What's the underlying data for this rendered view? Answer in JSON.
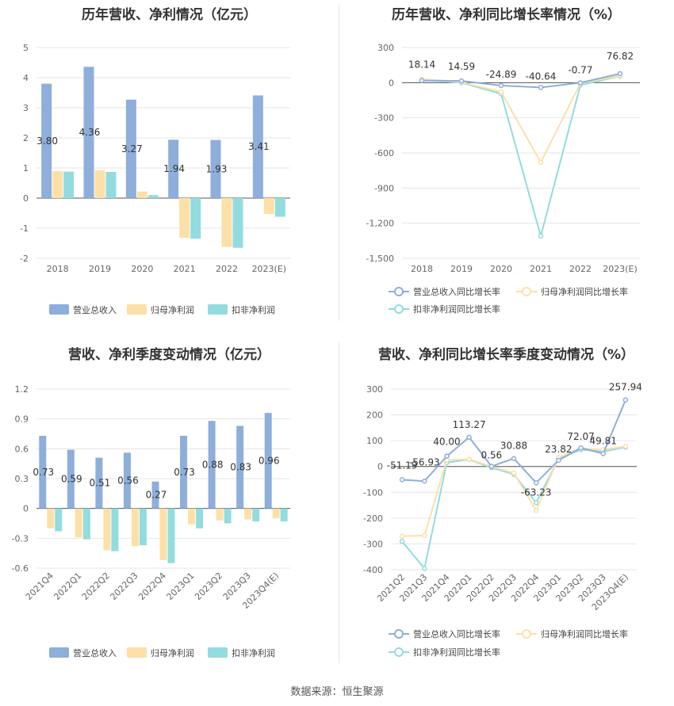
{
  "colors": {
    "revenue": "#8eaedb",
    "net_profit": "#fde0a8",
    "deducted_profit": "#92dcdf",
    "axis": "#666666",
    "grid": "#e6e6e6"
  },
  "source_text": "数据来源：恒生聚源",
  "chart_data": [
    {
      "type": "bar",
      "title": "历年营收、净利情况（亿元）",
      "categories": [
        "2018",
        "2019",
        "2020",
        "2021",
        "2022",
        "2023(E)"
      ],
      "ylim": [
        -2,
        5
      ],
      "yticks": [
        -2,
        -1,
        0,
        1,
        2,
        3,
        4,
        5
      ],
      "ytick_labels": [
        "-2",
        "-1",
        "0",
        "1",
        "2",
        "3",
        "4",
        "5"
      ],
      "series": [
        {
          "name": "营业总收入",
          "values": [
            3.8,
            4.36,
            3.27,
            1.94,
            1.93,
            3.41
          ],
          "labels": [
            "3.80",
            "4.36",
            "3.27",
            "1.94",
            "1.93",
            "3.41"
          ]
        },
        {
          "name": "归母净利润",
          "values": [
            0.9,
            0.92,
            0.22,
            -1.32,
            -1.62,
            -0.53
          ]
        },
        {
          "name": "扣非净利润",
          "values": [
            0.88,
            0.87,
            0.1,
            -1.35,
            -1.65,
            -0.62
          ]
        }
      ],
      "legend": "bottom"
    },
    {
      "type": "line",
      "title": "历年营收、净利同比增长率情况（%）",
      "categories": [
        "2018",
        "2019",
        "2020",
        "2021",
        "2022",
        "2023(E)"
      ],
      "ylim": [
        -1500,
        300
      ],
      "yticks": [
        -1500,
        -1200,
        -900,
        -600,
        -300,
        0,
        300
      ],
      "ytick_labels": [
        "-1,500",
        "-1,200",
        "-900",
        "-600",
        "-300",
        "0",
        "300"
      ],
      "series": [
        {
          "name": "营业总收入同比增长率",
          "values": [
            18.14,
            14.59,
            -24.89,
            -40.64,
            -0.77,
            76.82
          ],
          "labels": [
            "18.14",
            "14.59",
            "-24.89",
            "-40.64",
            "-0.77",
            "76.82"
          ]
        },
        {
          "name": "归母净利润同比增长率",
          "values": [
            30,
            5,
            -80,
            -680,
            -5,
            60
          ]
        },
        {
          "name": "扣非净利润同比增长率",
          "values": [
            25,
            0,
            -95,
            -1310,
            -20,
            55
          ]
        }
      ],
      "legend": "bottom"
    },
    {
      "type": "bar",
      "title": "营收、净利季度变动情况（亿元）",
      "categories": [
        "2021Q4",
        "2022Q1",
        "2022Q2",
        "2022Q3",
        "2022Q4",
        "2023Q1",
        "2023Q2",
        "2023Q3",
        "2023Q4(E)"
      ],
      "ylim": [
        -0.6,
        1.2
      ],
      "yticks": [
        -0.6,
        -0.3,
        0,
        0.3,
        0.6,
        0.9,
        1.2
      ],
      "ytick_labels": [
        "-0.6",
        "-0.3",
        "0",
        "0.3",
        "0.6",
        "0.9",
        "1.2"
      ],
      "series": [
        {
          "name": "营业总收入",
          "values": [
            0.73,
            0.59,
            0.51,
            0.56,
            0.27,
            0.73,
            0.88,
            0.83,
            0.96
          ],
          "labels": [
            "0.73",
            "0.59",
            "0.51",
            "0.56",
            "0.27",
            "0.73",
            "0.88",
            "0.83",
            "0.96"
          ]
        },
        {
          "name": "归母净利润",
          "values": [
            -0.2,
            -0.29,
            -0.42,
            -0.38,
            -0.52,
            -0.16,
            -0.12,
            -0.11,
            -0.1
          ]
        },
        {
          "name": "扣非净利润",
          "values": [
            -0.23,
            -0.31,
            -0.43,
            -0.37,
            -0.55,
            -0.2,
            -0.15,
            -0.13,
            -0.13
          ]
        }
      ],
      "legend": "bottom"
    },
    {
      "type": "line",
      "title": "营收、净利同比增长率季度变动情况（%）",
      "categories": [
        "2021Q2",
        "2021Q3",
        "2021Q4",
        "2022Q1",
        "2022Q2",
        "2022Q3",
        "2022Q4",
        "2023Q1",
        "2023Q2",
        "2023Q3",
        "2023Q4(E)"
      ],
      "ylim": [
        -400,
        300
      ],
      "yticks": [
        -400,
        -300,
        -200,
        -100,
        0,
        100,
        200,
        300
      ],
      "ytick_labels": [
        "-400",
        "-300",
        "-200",
        "-100",
        "0",
        "100",
        "200",
        "300"
      ],
      "series": [
        {
          "name": "营业总收入同比增长率",
          "values": [
            -51.19,
            -56.93,
            40.0,
            113.27,
            0.56,
            30.88,
            -63.23,
            23.82,
            72.07,
            49.81,
            257.94
          ],
          "labels": [
            "-51.19",
            "-56.93",
            "40.00",
            "113.27",
            "0.56",
            "30.88",
            "-63.23",
            "23.82",
            "72.07",
            "49.81",
            "257.94"
          ]
        },
        {
          "name": "归母净利润同比增长率",
          "values": [
            -270,
            -268,
            25,
            28,
            0,
            -25,
            -170,
            35,
            70,
            65,
            78
          ]
        },
        {
          "name": "扣非净利润同比增长率",
          "values": [
            -290,
            -395,
            15,
            27,
            -5,
            -30,
            -140,
            30,
            65,
            58,
            75
          ]
        }
      ],
      "legend": "bottom"
    }
  ]
}
